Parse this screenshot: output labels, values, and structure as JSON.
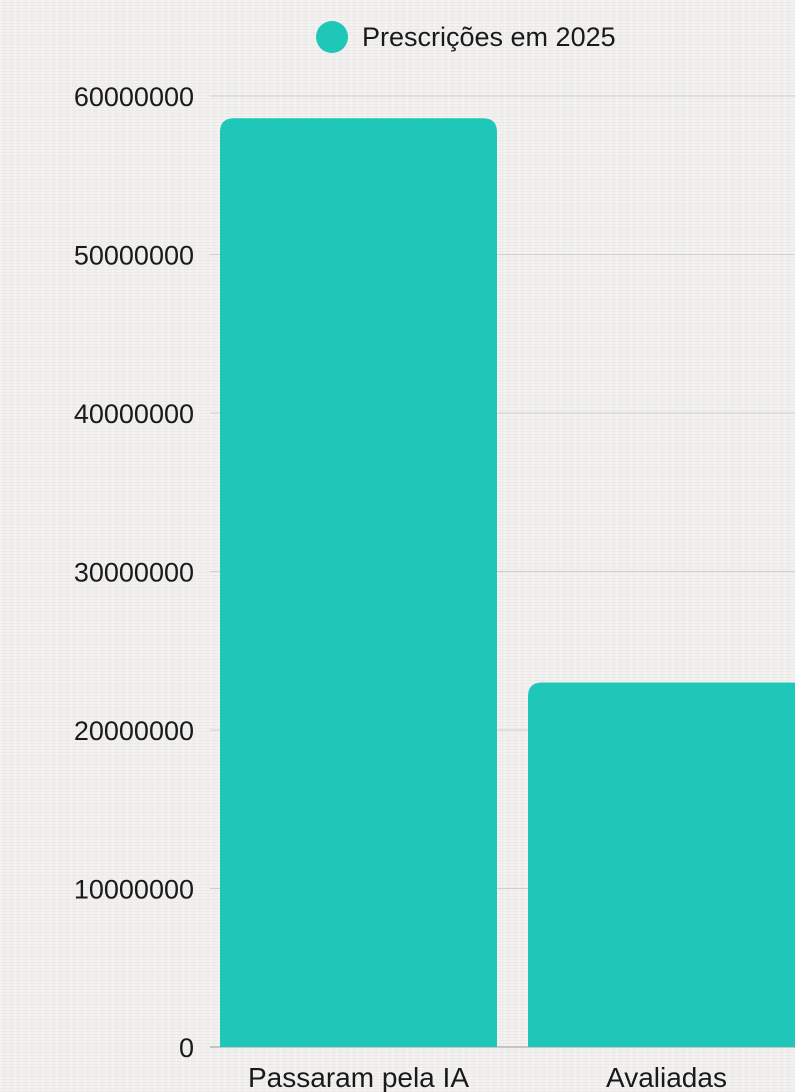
{
  "chart_data": {
    "type": "bar",
    "categories": [
      "Passaram pela IA",
      "Avaliadas"
    ],
    "series": [
      {
        "name": "Prescrições em 2025",
        "values": [
          58600000,
          23000000
        ]
      }
    ],
    "ylim": [
      0,
      60000000
    ],
    "yticks": [
      "0",
      "10000000",
      "20000000",
      "30000000",
      "40000000",
      "50000000",
      "60000000"
    ],
    "grid": true,
    "legend": "top",
    "colors": {
      "bar": "#1fc7b8",
      "grid": "#cfcfcf",
      "text": "#1a1a1a"
    }
  }
}
